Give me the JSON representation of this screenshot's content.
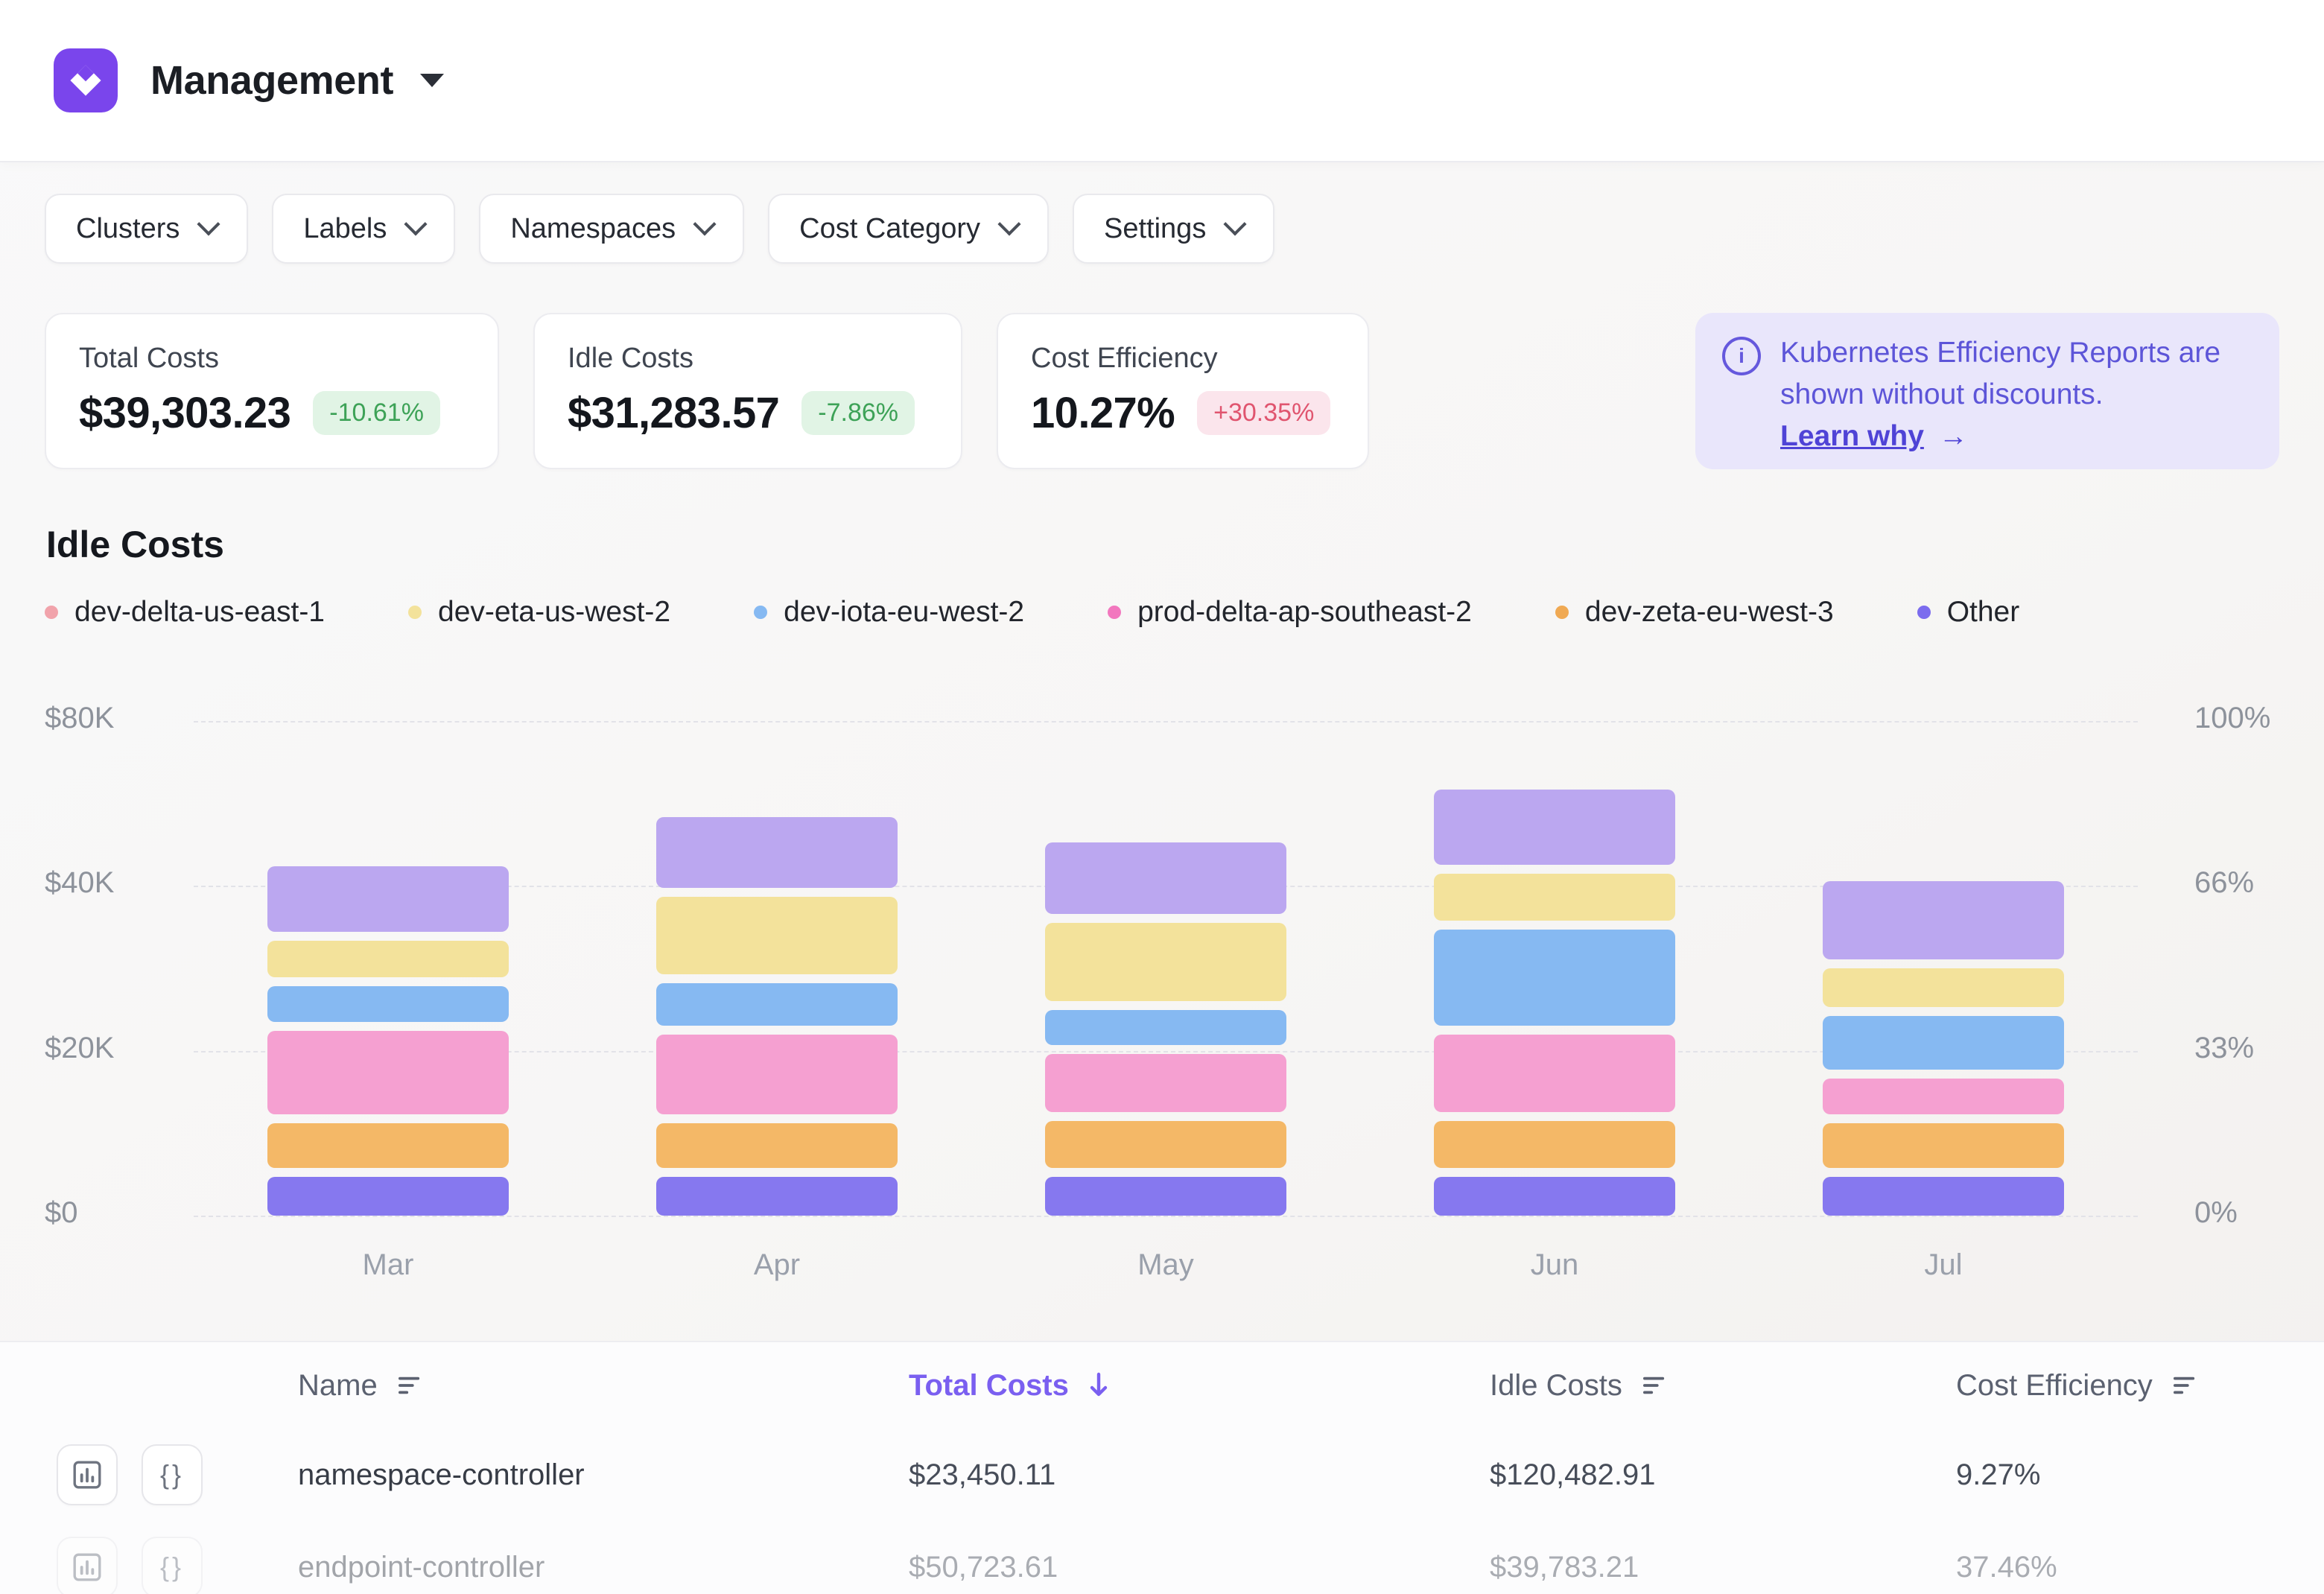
{
  "app": {
    "title": "Management"
  },
  "filters": [
    {
      "label": "Clusters"
    },
    {
      "label": "Labels"
    },
    {
      "label": "Namespaces"
    },
    {
      "label": "Cost Category"
    },
    {
      "label": "Settings"
    }
  ],
  "kpis": [
    {
      "label": "Total Costs",
      "value": "$39,303.23",
      "delta": "-10.61%",
      "delta_kind": "good"
    },
    {
      "label": "Idle Costs",
      "value": "$31,283.57",
      "delta": "-7.86%",
      "delta_kind": "good"
    },
    {
      "label": "Cost Efficiency",
      "value": "10.27%",
      "delta": "+30.35%",
      "delta_kind": "bad"
    }
  ],
  "info_banner": {
    "message": "Kubernetes Efficiency Reports are shown without discounts.",
    "link_label": "Learn why",
    "arrow": "→"
  },
  "section_title": "Idle Costs",
  "chart_data": {
    "type": "bar",
    "stacked": true,
    "title": "Idle Costs",
    "categories": [
      "Mar",
      "Apr",
      "May",
      "Jun",
      "Jul"
    ],
    "unit": "USD thousands",
    "y_ticks": [
      0,
      20,
      40,
      80
    ],
    "y_tick_labels_left": [
      "$0",
      "$20K",
      "$40K",
      "$80K"
    ],
    "y_tick_labels_right": [
      "0%",
      "33%",
      "66%",
      "100%"
    ],
    "stack_order": "first series renders at top of stack",
    "series": [
      {
        "name": "dev-delta-us-east-1",
        "color": "#bba7f0",
        "dot_color": "#f1a3ab",
        "values": [
          11.4,
          17.9,
          15.0,
          20.5,
          11.1
        ]
      },
      {
        "name": "dev-eta-us-west-2",
        "color": "#f3e29b",
        "dot_color": "#f3e29b",
        "values": [
          5.5,
          10.5,
          10.6,
          8.2,
          5.8
        ]
      },
      {
        "name": "dev-iota-eu-west-2",
        "color": "#86b9f2",
        "dot_color": "#86b9f2",
        "values": [
          5.4,
          6.2,
          5.3,
          12.7,
          7.6
        ]
      },
      {
        "name": "prod-delta-ap-southeast-2",
        "color": "#f5a0d1",
        "dot_color": "#f277be",
        "values": [
          11.2,
          10.8,
          8.1,
          10.5,
          5.4
        ]
      },
      {
        "name": "dev-zeta-eu-west-3",
        "color": "#f4b867",
        "dot_color": "#f0a953",
        "values": [
          6.5,
          6.5,
          6.8,
          6.8,
          6.5
        ]
      },
      {
        "name": "Other",
        "color": "#8678ef",
        "dot_color": "#7b6cee",
        "values": [
          4.7,
          4.7,
          4.7,
          4.7,
          4.7
        ]
      }
    ]
  },
  "table": {
    "columns": [
      {
        "label": "Name",
        "sort": "none"
      },
      {
        "label": "Total Costs",
        "sort": "desc",
        "active": true
      },
      {
        "label": "Idle Costs",
        "sort": "none"
      },
      {
        "label": "Cost Efficiency",
        "sort": "none"
      }
    ],
    "rows": [
      {
        "name": "namespace-controller",
        "total_costs": "$23,450.11",
        "idle_costs": "$120,482.91",
        "cost_efficiency": "9.27%",
        "faded": false
      },
      {
        "name": "endpoint-controller",
        "total_costs": "$50,723.61",
        "idle_costs": "$39,783.21",
        "cost_efficiency": "37.46%",
        "faded": true
      }
    ]
  },
  "icons": {
    "logo": "kubecost-diamond",
    "info": "info-circle",
    "chevron": "chevron-down",
    "sort": "sort-lines",
    "sort_active": "arrow-down",
    "row_chart": "bar-chart-icon",
    "row_braces": "braces-icon",
    "braces_glyph": "{}"
  }
}
